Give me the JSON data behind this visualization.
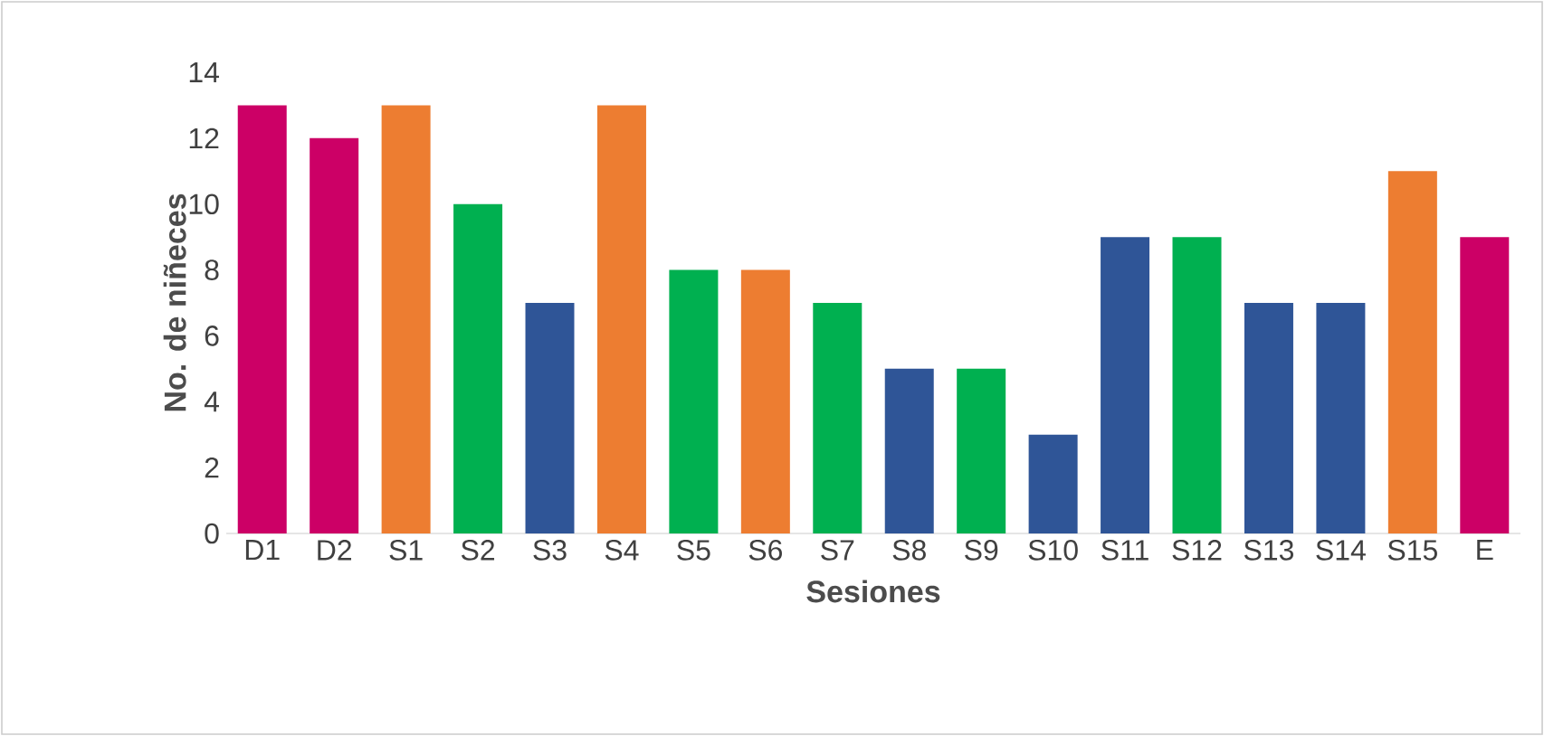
{
  "chart_data": {
    "type": "bar",
    "xlabel": "Sesiones",
    "ylabel": "No. de niñeces",
    "categories": [
      "D1",
      "D2",
      "S1",
      "S2",
      "S3",
      "S4",
      "S5",
      "S6",
      "S7",
      "S8",
      "S9",
      "S10",
      "S11",
      "S12",
      "S13",
      "S14",
      "S15",
      "E"
    ],
    "values": [
      13,
      12,
      13,
      10,
      7,
      13,
      8,
      8,
      7,
      5,
      5,
      3,
      9,
      9,
      7,
      7,
      11,
      9
    ],
    "colors": [
      "#cc0066",
      "#cc0066",
      "#ed7d31",
      "#00b050",
      "#2f5597",
      "#ed7d31",
      "#00b050",
      "#ed7d31",
      "#00b050",
      "#2f5597",
      "#00b050",
      "#2f5597",
      "#2f5597",
      "#00b050",
      "#2f5597",
      "#2f5597",
      "#ed7d31",
      "#cc0066"
    ],
    "ylim": [
      0,
      14
    ],
    "yticks": [
      0,
      2,
      4,
      6,
      8,
      10,
      12,
      14
    ]
  }
}
